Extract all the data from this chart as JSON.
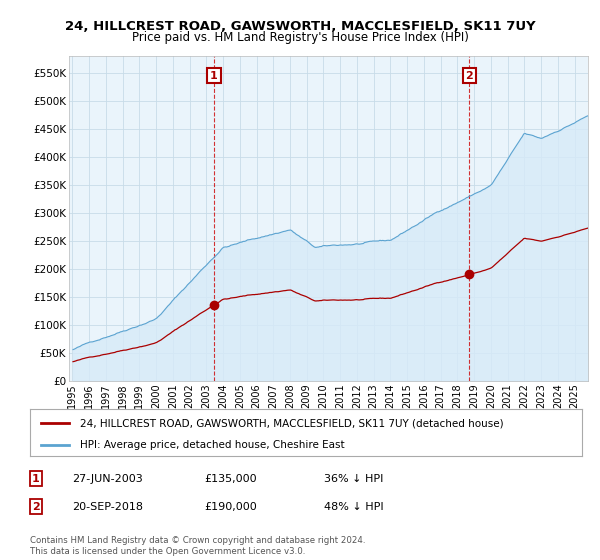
{
  "title": "24, HILLCREST ROAD, GAWSWORTH, MACCLESFIELD, SK11 7UY",
  "subtitle": "Price paid vs. HM Land Registry's House Price Index (HPI)",
  "sale1_date": "27-JUN-2003",
  "sale1_price": 135000,
  "sale1_label": "36% ↓ HPI",
  "sale2_date": "20-SEP-2018",
  "sale2_price": 190000,
  "sale2_label": "48% ↓ HPI",
  "legend_line1": "24, HILLCREST ROAD, GAWSWORTH, MACCLESFIELD, SK11 7UY (detached house)",
  "legend_line2": "HPI: Average price, detached house, Cheshire East",
  "footnote": "Contains HM Land Registry data © Crown copyright and database right 2024.\nThis data is licensed under the Open Government Licence v3.0.",
  "hpi_color": "#5ba3d0",
  "hpi_fill_color": "#d6eaf8",
  "price_color": "#aa0000",
  "ylim_min": 0,
  "ylim_max": 580000,
  "yticks": [
    0,
    50000,
    100000,
    150000,
    200000,
    250000,
    300000,
    350000,
    400000,
    450000,
    500000,
    550000
  ],
  "ytick_labels": [
    "£0",
    "£50K",
    "£100K",
    "£150K",
    "£200K",
    "£250K",
    "£300K",
    "£350K",
    "£400K",
    "£450K",
    "£500K",
    "£550K"
  ],
  "background_color": "#ffffff",
  "plot_bg_color": "#eaf4fb",
  "grid_color": "#c8dce8"
}
